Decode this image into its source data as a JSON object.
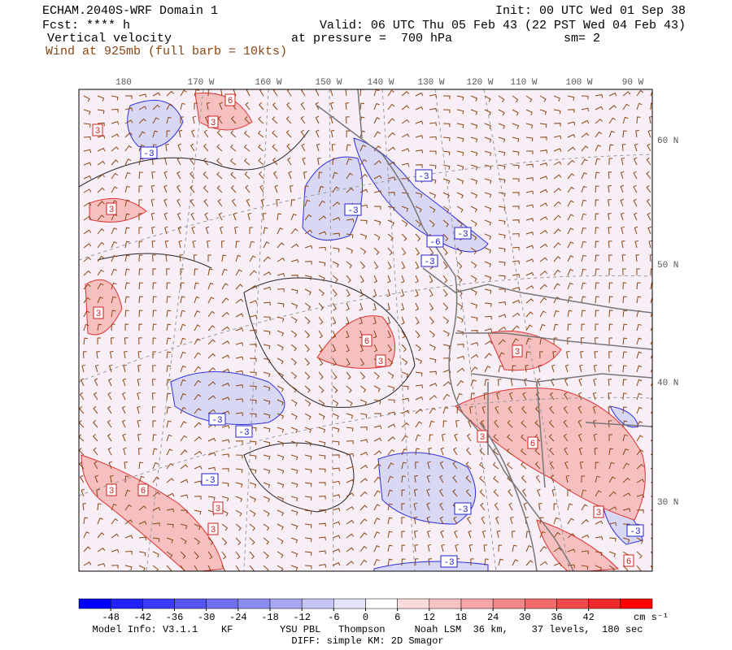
{
  "header": {
    "title": "ECHAM.2040S-WRF Domain 1",
    "init": "Init: 00 UTC Wed 01 Sep 38",
    "fcst": "Fcst: **** h",
    "valid": "Valid: 06 UTC Thu 05 Feb 43 (22 PST Wed 04 Feb 43)",
    "field": "Vertical velocity",
    "pressure": "at pressure =  700 hPa",
    "smoothing": "sm= 2",
    "wind": "Wind at 925mb (full barb = 10kts)"
  },
  "map": {
    "lon_labels": [
      "180",
      "170 W",
      "160 W",
      "150 W",
      "140 W",
      "130 W",
      "120 W",
      "110 W",
      "100 W",
      "90 W"
    ],
    "lat_labels": [
      "60 N",
      "50 N",
      "40 N",
      "30 N"
    ],
    "contour_labels": [
      "3",
      "-3",
      "3",
      "6",
      "3",
      "-3",
      "-3",
      "-3",
      "-6",
      "-3",
      "3",
      "6",
      "3",
      "3",
      "-3",
      "-3",
      "3",
      "6",
      "-3",
      "3",
      "6",
      "3",
      "3",
      "-3",
      "-3",
      "-3",
      "6",
      "3"
    ]
  },
  "colorbar": {
    "ticks": [
      -48,
      -42,
      -36,
      -30,
      -24,
      -18,
      -12,
      -6,
      0,
      6,
      12,
      18,
      24,
      30,
      36,
      42
    ],
    "unit": "cm s⁻¹",
    "colors": [
      "#0000ff",
      "#2222ff",
      "#3a3aff",
      "#5555f5",
      "#6f6ff0",
      "#8c8cf0",
      "#a8a8f2",
      "#c4c4f6",
      "#e4e4fa",
      "#ffffff",
      "#fadada",
      "#f8c2c2",
      "#f6a6a6",
      "#f48888",
      "#f26a6a",
      "#f04a4a",
      "#f02a2a",
      "#ff0000"
    ]
  },
  "footer": {
    "model_info": "Model Info: V3.1.1    KF        YSU PBL   Thompson     Noah LSM  36 km,    37 levels,  180 sec",
    "diff": "DIFF: simple KM: 2D Smagor"
  }
}
